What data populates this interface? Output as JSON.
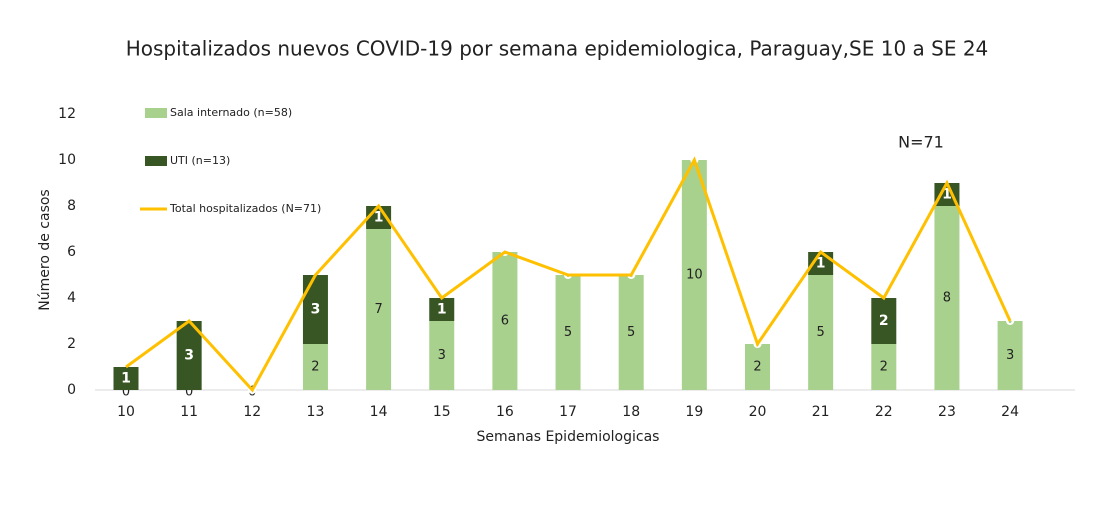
{
  "chart_data": {
    "type": "bar",
    "title": "Hospitalizados nuevos COVID-19 por semana epidemiologica, Paraguay,SE 10 a SE 24",
    "x_label": "Semanas Epidemiologicas",
    "y_label": "Número de casos",
    "annotation": "N=71",
    "stacked": true,
    "categories": [
      "10",
      "11",
      "12",
      "13",
      "14",
      "15",
      "16",
      "17",
      "18",
      "19",
      "20",
      "21",
      "22",
      "23",
      "24"
    ],
    "series": [
      {
        "name": "Sala internado (n=58)",
        "color": "#a9d18e",
        "values": [
          0,
          0,
          0,
          2,
          7,
          3,
          6,
          5,
          5,
          10,
          2,
          5,
          2,
          8,
          3
        ]
      },
      {
        "name": "UTI (n=13)",
        "color": "#375623",
        "values": [
          1,
          3,
          0,
          3,
          1,
          1,
          0,
          0,
          0,
          0,
          0,
          1,
          2,
          1,
          0
        ]
      },
      {
        "name": "Total hospitalizados (N=71)",
        "type": "line",
        "color": "#ffc000",
        "values": [
          1,
          3,
          0,
          5,
          8,
          4,
          6,
          5,
          5,
          10,
          2,
          6,
          4,
          9,
          3
        ]
      }
    ],
    "ylim": [
      0,
      12
    ],
    "yticks": [
      0,
      2,
      4,
      6,
      8,
      10,
      12
    ]
  }
}
